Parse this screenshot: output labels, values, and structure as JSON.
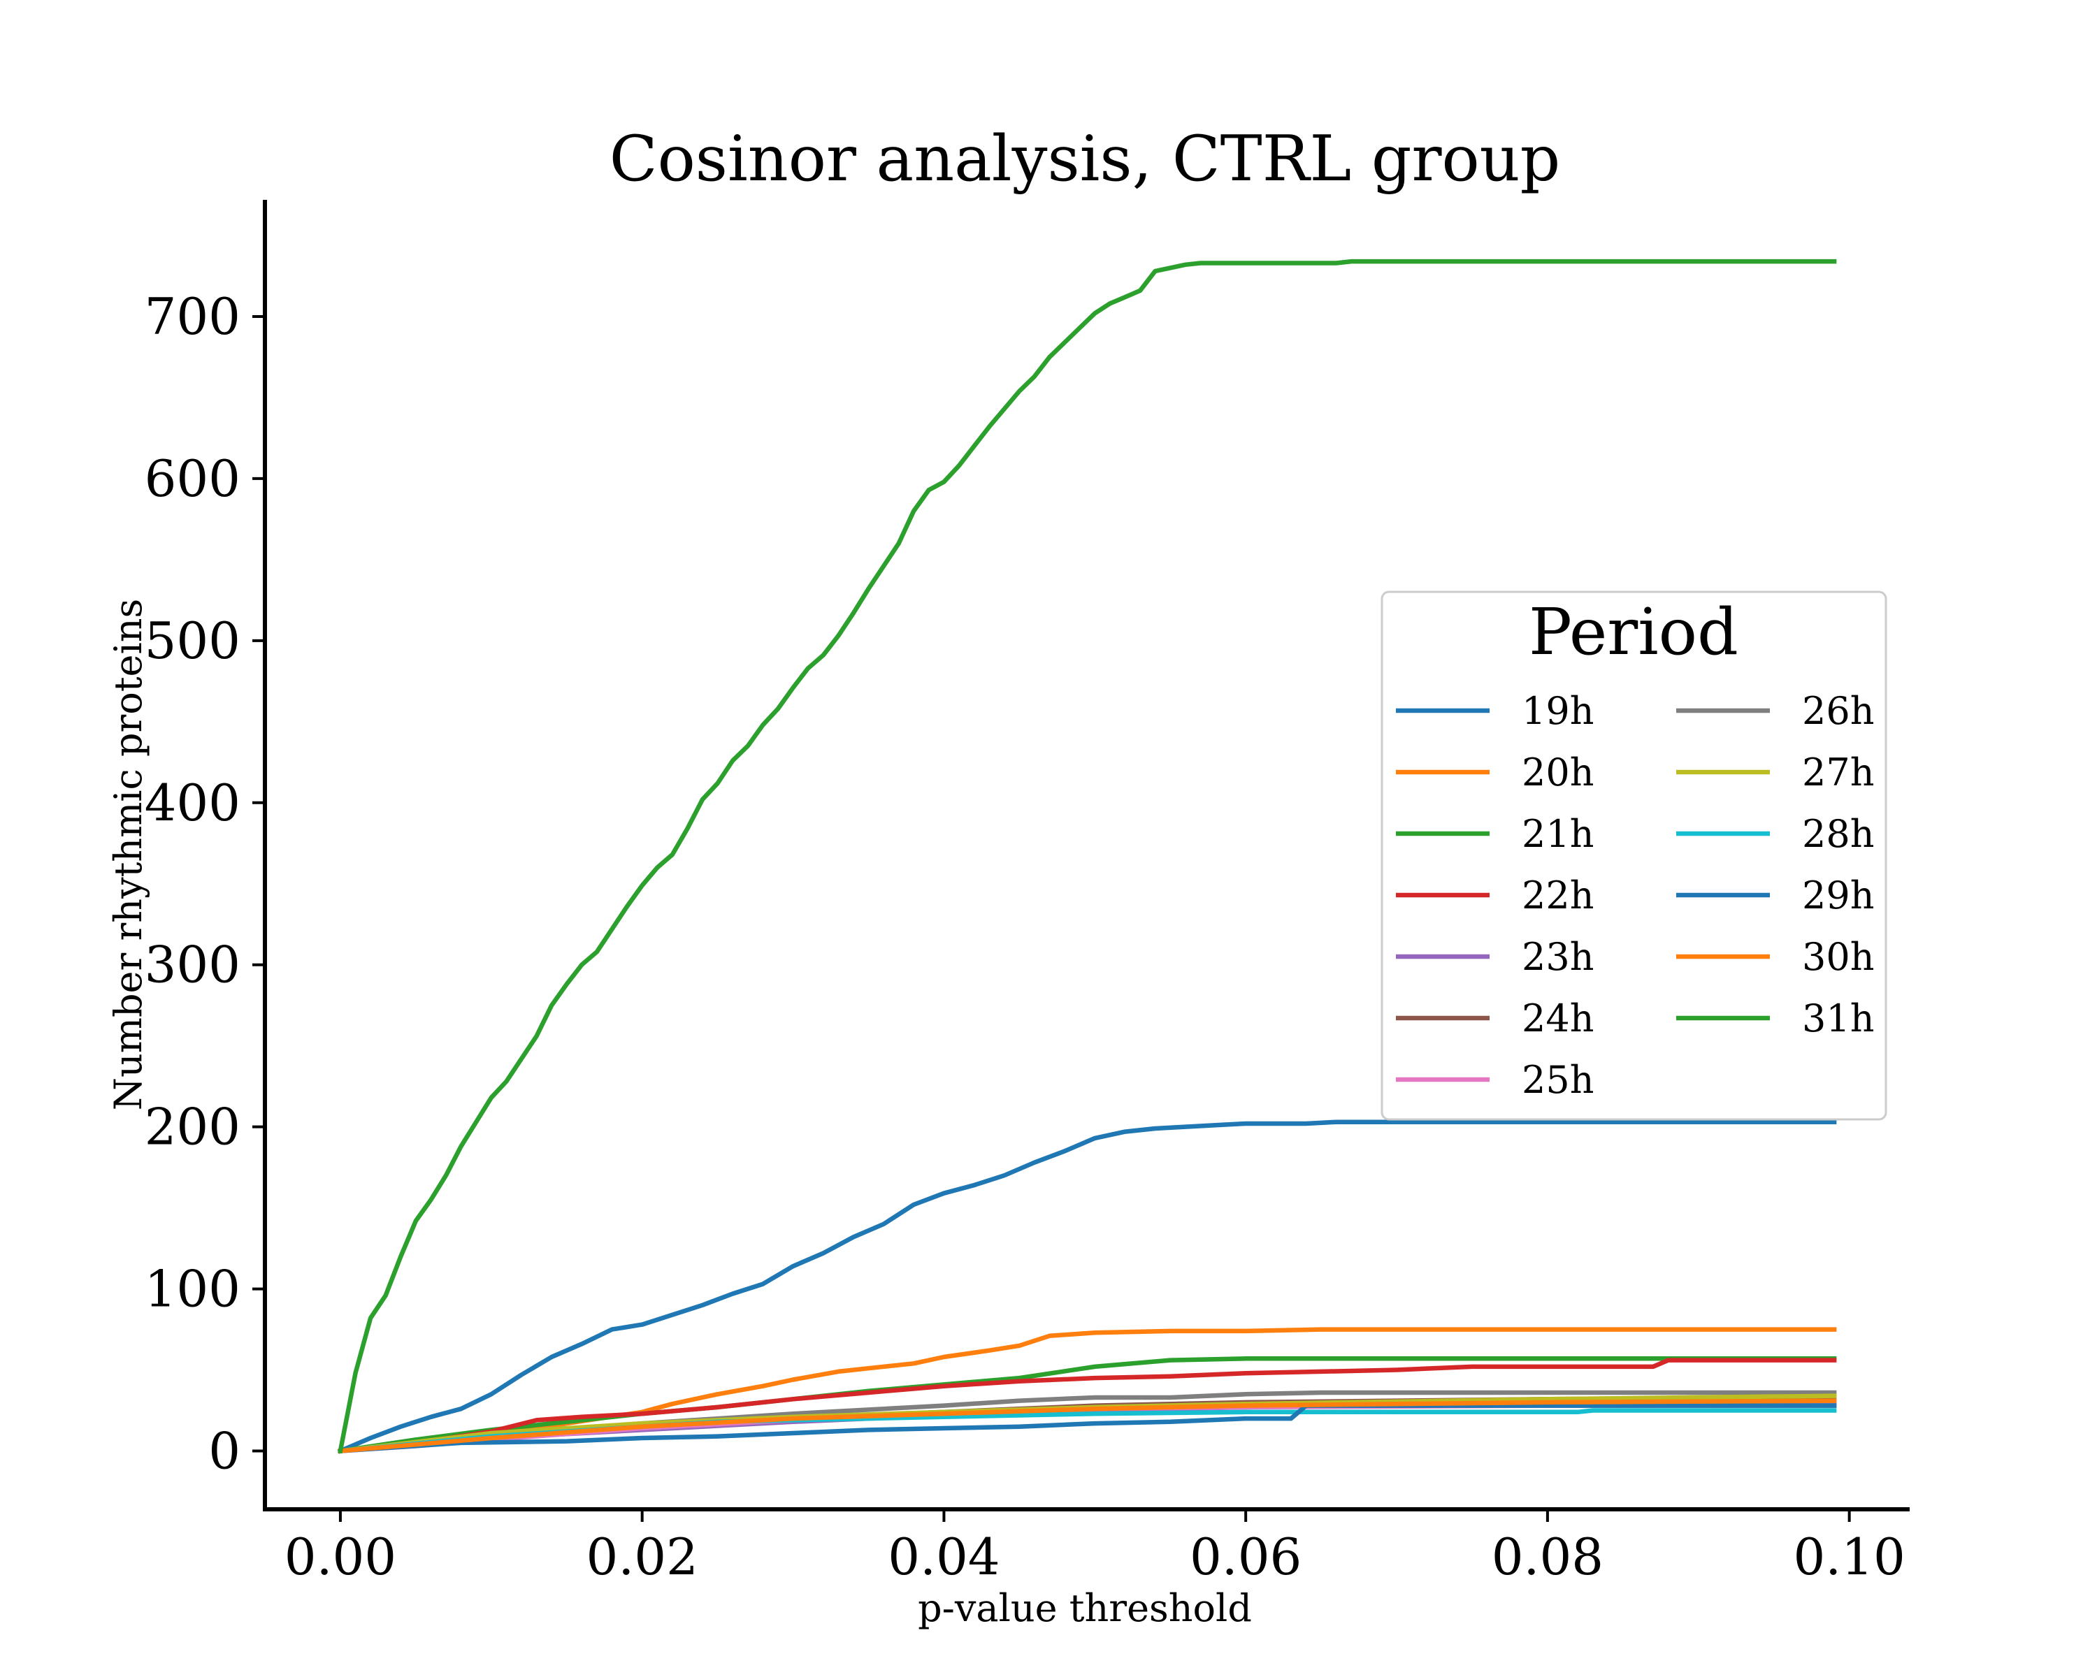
{
  "chart_data": {
    "type": "line",
    "title": "Cosinor analysis, CTRL group",
    "xlabel": "p-value threshold",
    "ylabel": "Number rhythmic proteins",
    "xlim": [
      -0.005,
      0.104
    ],
    "ylim": [
      -36,
      772
    ],
    "xticks": [
      0.0,
      0.02,
      0.04,
      0.06,
      0.08,
      0.1
    ],
    "xtick_labels": [
      "0.00",
      "0.02",
      "0.04",
      "0.06",
      "0.08",
      "0.10"
    ],
    "yticks": [
      0,
      100,
      200,
      300,
      400,
      500,
      600,
      700
    ],
    "ytick_labels": [
      "0",
      "100",
      "200",
      "300",
      "400",
      "500",
      "600",
      "700"
    ],
    "grid": false,
    "legend": {
      "title": "Period",
      "placement": "center-right",
      "columns": 2
    },
    "series": [
      {
        "name": "19h",
        "color": "#1f77b4",
        "x": [
          0,
          0.002,
          0.004,
          0.006,
          0.008,
          0.01,
          0.012,
          0.014,
          0.016,
          0.018,
          0.02,
          0.022,
          0.024,
          0.026,
          0.028,
          0.03,
          0.032,
          0.034,
          0.036,
          0.038,
          0.04,
          0.042,
          0.044,
          0.046,
          0.048,
          0.05,
          0.052,
          0.054,
          0.056,
          0.058,
          0.06,
          0.062,
          0.064,
          0.066,
          0.07,
          0.08,
          0.099
        ],
        "y": [
          0,
          8,
          15,
          21,
          26,
          35,
          47,
          58,
          66,
          75,
          78,
          84,
          90,
          97,
          103,
          114,
          122,
          132,
          140,
          152,
          159,
          164,
          170,
          178,
          185,
          193,
          197,
          199,
          200,
          201,
          202,
          202,
          202,
          203,
          203,
          203,
          203
        ]
      },
      {
        "name": "20h",
        "color": "#ff7f0e",
        "x": [
          0,
          0.005,
          0.01,
          0.015,
          0.02,
          0.022,
          0.025,
          0.028,
          0.03,
          0.033,
          0.035,
          0.038,
          0.04,
          0.043,
          0.045,
          0.047,
          0.05,
          0.055,
          0.06,
          0.065,
          0.08,
          0.099
        ],
        "y": [
          0,
          5,
          10,
          17,
          24,
          29,
          35,
          40,
          44,
          49,
          51,
          54,
          58,
          62,
          65,
          71,
          73,
          74,
          74,
          75,
          75,
          75
        ]
      },
      {
        "name": "21h",
        "color": "#2ca02c",
        "x": [
          0,
          0.005,
          0.01,
          0.015,
          0.02,
          0.025,
          0.03,
          0.035,
          0.04,
          0.045,
          0.05,
          0.055,
          0.06,
          0.08,
          0.099
        ],
        "y": [
          0,
          7,
          13,
          18,
          23,
          27,
          32,
          37,
          41,
          45,
          52,
          56,
          57,
          57,
          57
        ]
      },
      {
        "name": "22h",
        "color": "#d62728",
        "x": [
          0,
          0.005,
          0.01,
          0.013,
          0.016,
          0.02,
          0.025,
          0.03,
          0.035,
          0.04,
          0.045,
          0.05,
          0.055,
          0.06,
          0.065,
          0.07,
          0.075,
          0.087,
          0.088,
          0.099
        ],
        "y": [
          0,
          5,
          12,
          19,
          21,
          23,
          27,
          32,
          36,
          40,
          43,
          45,
          46,
          48,
          49,
          50,
          52,
          52,
          56,
          56
        ]
      },
      {
        "name": "23h",
        "color": "#9467bd",
        "x": [
          0,
          0.01,
          0.02,
          0.03,
          0.04,
          0.05,
          0.06,
          0.08,
          0.099
        ],
        "y": [
          0,
          8,
          13,
          18,
          22,
          25,
          27,
          29,
          30
        ]
      },
      {
        "name": "24h",
        "color": "#8c564b",
        "x": [
          0,
          0.01,
          0.02,
          0.03,
          0.04,
          0.05,
          0.06,
          0.08,
          0.099
        ],
        "y": [
          0,
          9,
          15,
          20,
          24,
          28,
          30,
          32,
          33
        ]
      },
      {
        "name": "25h",
        "color": "#e377c2",
        "x": [
          0,
          0.005,
          0.01,
          0.02,
          0.03,
          0.04,
          0.05,
          0.06,
          0.08,
          0.099
        ],
        "y": [
          0,
          3,
          7,
          14,
          19,
          23,
          26,
          27,
          28,
          28
        ]
      },
      {
        "name": "26h",
        "color": "#7f7f7f",
        "x": [
          0,
          0.01,
          0.02,
          0.03,
          0.04,
          0.045,
          0.05,
          0.055,
          0.06,
          0.065,
          0.08,
          0.099
        ],
        "y": [
          0,
          10,
          17,
          23,
          28,
          31,
          33,
          33,
          35,
          36,
          36,
          36
        ]
      },
      {
        "name": "27h",
        "color": "#bcbd22",
        "x": [
          0,
          0.01,
          0.02,
          0.03,
          0.04,
          0.05,
          0.06,
          0.08,
          0.099
        ],
        "y": [
          0,
          11,
          17,
          21,
          24,
          27,
          29,
          32,
          34
        ]
      },
      {
        "name": "28h",
        "color": "#17becf",
        "x": [
          0,
          0.01,
          0.02,
          0.025,
          0.03,
          0.04,
          0.05,
          0.06,
          0.07,
          0.082,
          0.083,
          0.099
        ],
        "y": [
          0,
          9,
          15,
          18,
          19,
          21,
          23,
          24,
          24,
          24,
          25,
          25
        ]
      },
      {
        "name": "29h",
        "color": "#1f77b4",
        "x": [
          0,
          0.008,
          0.015,
          0.02,
          0.025,
          0.03,
          0.035,
          0.04,
          0.045,
          0.05,
          0.055,
          0.06,
          0.063,
          0.064,
          0.08,
          0.099
        ],
        "y": [
          0,
          5,
          6,
          8,
          9,
          11,
          13,
          14,
          15,
          17,
          18,
          20,
          20,
          28,
          28,
          28
        ]
      },
      {
        "name": "30h",
        "color": "#ff7f0e",
        "x": [
          0,
          0.01,
          0.02,
          0.03,
          0.04,
          0.05,
          0.06,
          0.08,
          0.099
        ],
        "y": [
          0,
          8,
          15,
          20,
          23,
          26,
          28,
          30,
          31
        ]
      },
      {
        "name": "31h",
        "color": "#2ca02c",
        "x": [
          0,
          0.001,
          0.002,
          0.003,
          0.004,
          0.005,
          0.006,
          0.007,
          0.008,
          0.009,
          0.01,
          0.011,
          0.012,
          0.013,
          0.014,
          0.015,
          0.016,
          0.017,
          0.018,
          0.019,
          0.02,
          0.021,
          0.022,
          0.023,
          0.024,
          0.025,
          0.026,
          0.027,
          0.028,
          0.029,
          0.03,
          0.031,
          0.032,
          0.033,
          0.034,
          0.035,
          0.036,
          0.037,
          0.038,
          0.039,
          0.04,
          0.041,
          0.042,
          0.043,
          0.044,
          0.045,
          0.046,
          0.047,
          0.048,
          0.049,
          0.05,
          0.051,
          0.052,
          0.053,
          0.054,
          0.055,
          0.056,
          0.057,
          0.06,
          0.066,
          0.067,
          0.08,
          0.099
        ],
        "y": [
          0,
          48,
          82,
          96,
          120,
          142,
          155,
          170,
          188,
          203,
          218,
          228,
          242,
          256,
          275,
          288,
          300,
          308,
          322,
          336,
          349,
          360,
          368,
          384,
          402,
          412,
          426,
          435,
          448,
          458,
          471,
          483,
          491,
          503,
          517,
          532,
          546,
          560,
          580,
          593,
          598,
          608,
          620,
          632,
          643,
          654,
          663,
          675,
          684,
          693,
          702,
          708,
          712,
          716,
          728,
          730,
          732,
          733,
          733,
          733,
          734,
          734,
          734
        ]
      }
    ]
  }
}
